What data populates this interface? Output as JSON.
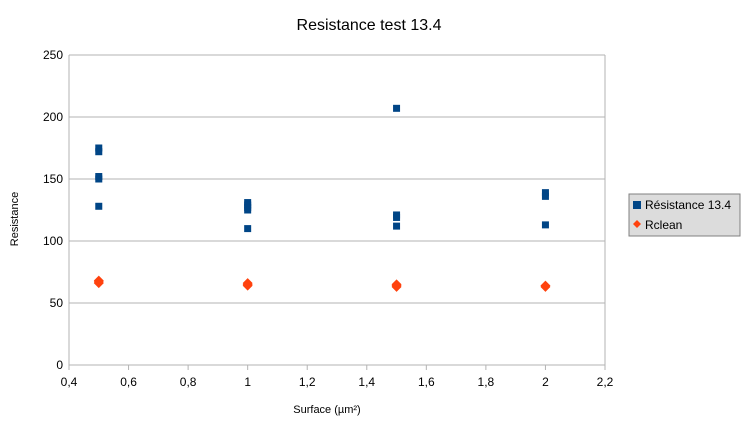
{
  "chart_data": {
    "type": "scatter",
    "title": "Resistance test 13.4",
    "xlabel": "Surface (µm²)",
    "ylabel": "Resistance",
    "xlim": [
      0.4,
      2.2
    ],
    "ylim": [
      0,
      250
    ],
    "x_ticks": [
      "0,4",
      "0,6",
      "0,8",
      "1",
      "1,2",
      "1,4",
      "1,6",
      "1,8",
      "2",
      "2,2"
    ],
    "y_ticks": [
      "0",
      "50",
      "100",
      "150",
      "200",
      "250"
    ],
    "grid": "horizontal",
    "legend_position": "right",
    "series": [
      {
        "name": "Résistance 13.4",
        "color": "#004586",
        "marker": "square",
        "points": [
          [
            0.5,
            175
          ],
          [
            0.5,
            172
          ],
          [
            0.5,
            152
          ],
          [
            0.5,
            150
          ],
          [
            0.5,
            128
          ],
          [
            1,
            131
          ],
          [
            1,
            129
          ],
          [
            1,
            127
          ],
          [
            1,
            125
          ],
          [
            1,
            110
          ],
          [
            1.5,
            207
          ],
          [
            1.5,
            121
          ],
          [
            1.5,
            119
          ],
          [
            1.5,
            112
          ],
          [
            2,
            139
          ],
          [
            2,
            136
          ],
          [
            2,
            113
          ]
        ]
      },
      {
        "name": "Rclean",
        "color": "#ff420e",
        "marker": "diamond",
        "points": [
          [
            0.5,
            68
          ],
          [
            0.5,
            67
          ],
          [
            0.5,
            66
          ],
          [
            1,
            66
          ],
          [
            1,
            65
          ],
          [
            1,
            64
          ],
          [
            1.5,
            65
          ],
          [
            1.5,
            64
          ],
          [
            1.5,
            63
          ],
          [
            2,
            64
          ],
          [
            2,
            63
          ]
        ]
      }
    ]
  }
}
